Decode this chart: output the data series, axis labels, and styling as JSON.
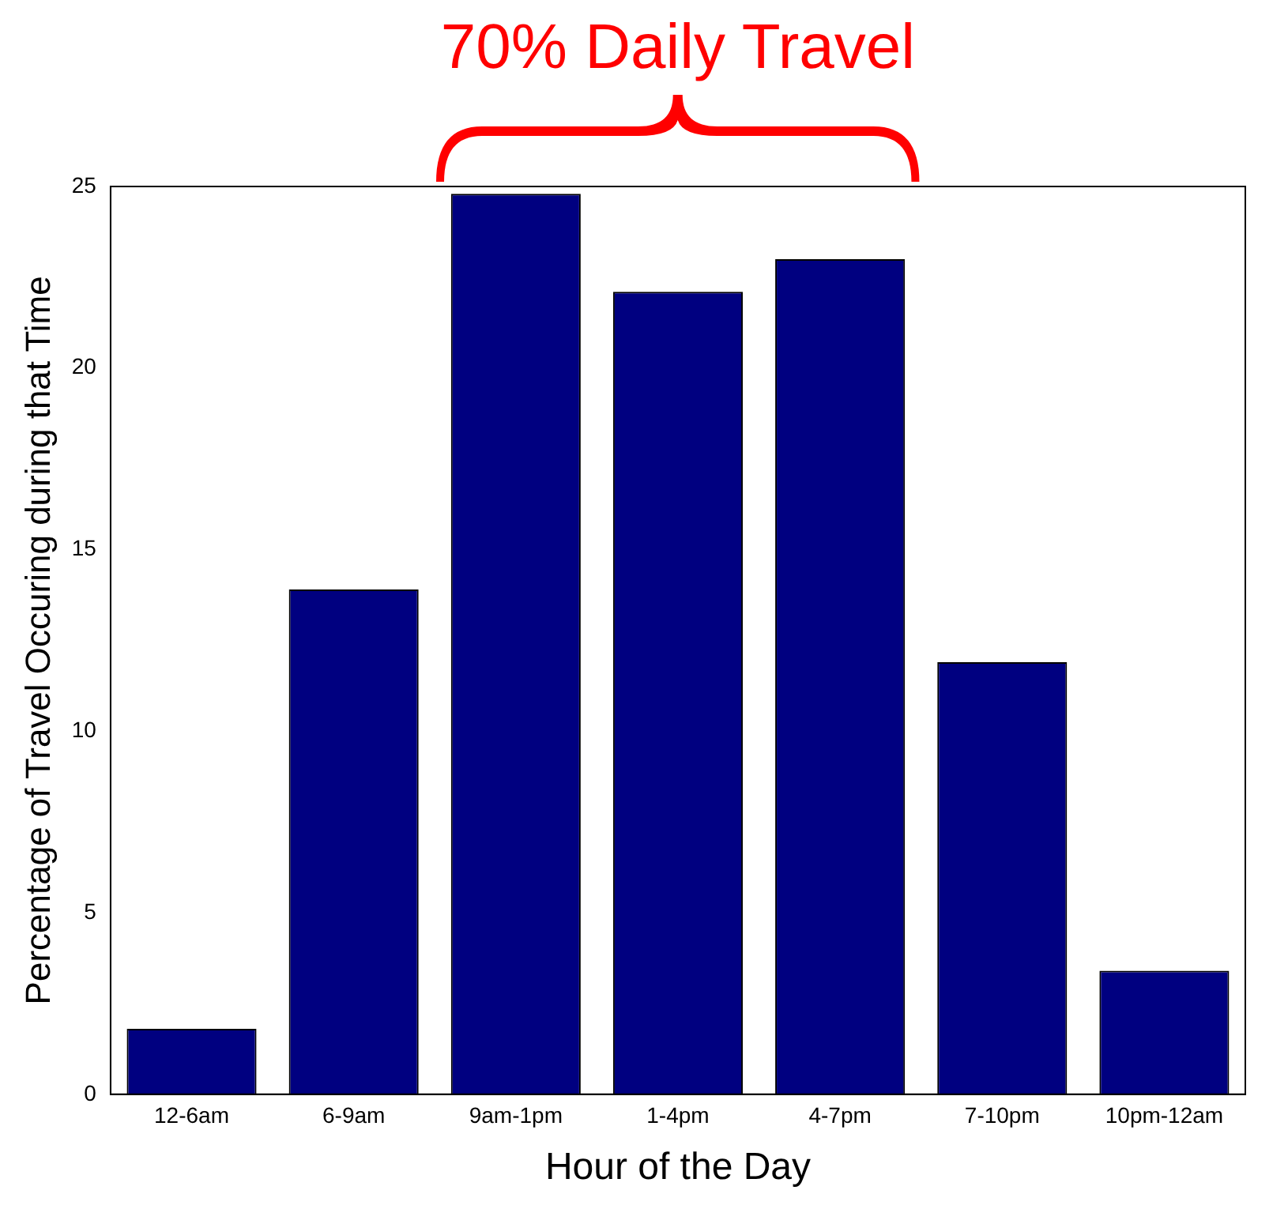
{
  "chart_data": {
    "type": "bar",
    "xlabel": "Hour of the Day",
    "ylabel": "Percentage of Travel Occuring during that Time",
    "categories": [
      "12-6am",
      "6-9am",
      "9am-1pm",
      "1-4pm",
      "4-7pm",
      "7-10pm",
      "10pm-12am"
    ],
    "values": [
      1.8,
      13.9,
      24.8,
      22.1,
      23.0,
      11.9,
      3.4
    ],
    "color": "#000080",
    "ylim": [
      0,
      25
    ],
    "yticks": [
      0,
      5,
      10,
      15,
      20,
      25
    ],
    "grid": false,
    "legend": false,
    "annotations": [
      "70% Daily Travel"
    ]
  }
}
